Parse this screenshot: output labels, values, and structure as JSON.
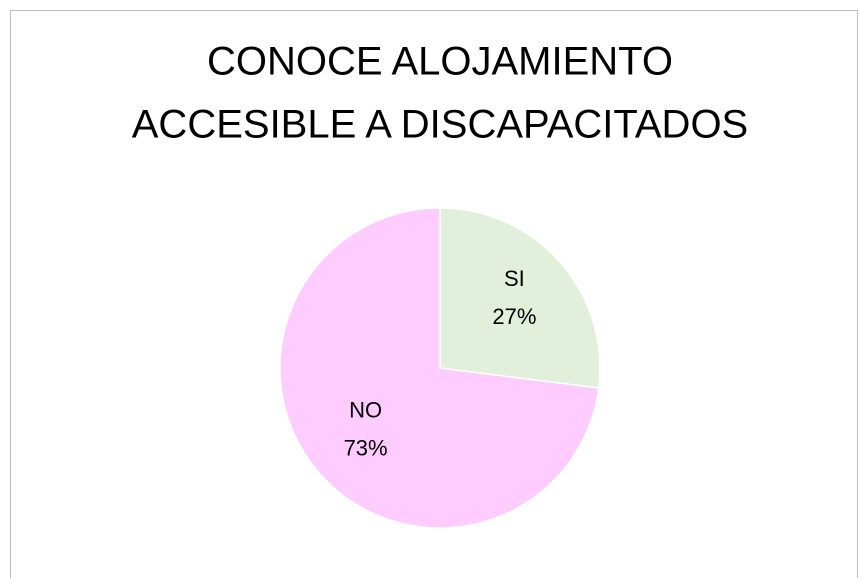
{
  "chart_data": {
    "type": "pie",
    "title": [
      "CONOCE ALOJAMIENTO",
      "ACCESIBLE A DISCAPACITADOS"
    ],
    "categories": [
      "SI",
      "NO"
    ],
    "values": [
      27,
      73
    ],
    "value_labels": [
      "27%",
      "73%"
    ],
    "colors": [
      "#e2efda",
      "#ffccff"
    ]
  }
}
